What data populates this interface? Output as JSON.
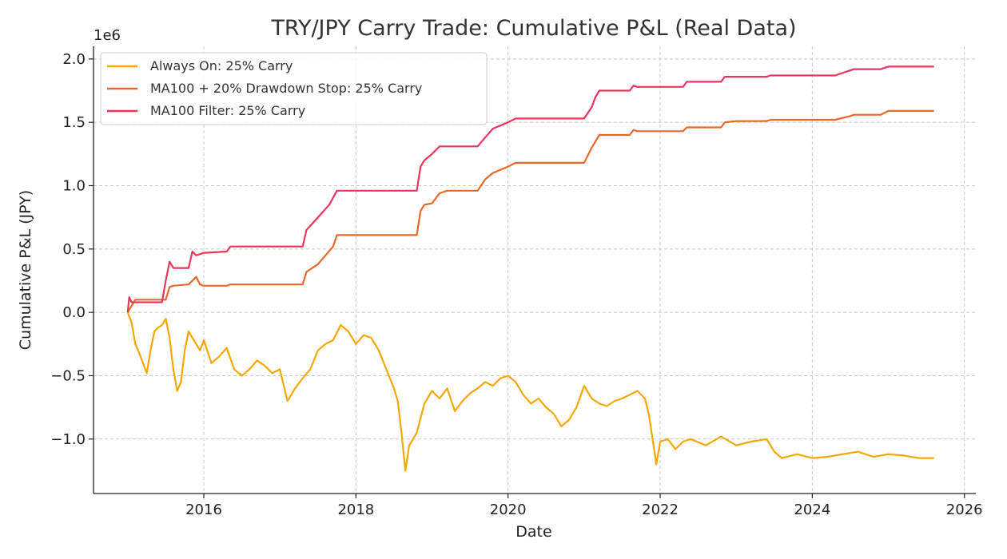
{
  "chart_data": {
    "type": "line",
    "title": "TRY/JPY Carry Trade: Cumulative P&L (Real Data)",
    "xlabel": "Date",
    "ylabel": "Cumulative P&L (JPY)",
    "y_offset_label": "1e6",
    "xlim": [
      2014.55,
      2026.15
    ],
    "ylim": [
      -1.43,
      2.1
    ],
    "x_ticks": [
      2016,
      2018,
      2020,
      2022,
      2024,
      2026
    ],
    "x_tick_labels": [
      "2016",
      "2018",
      "2020",
      "2022",
      "2024",
      "2026"
    ],
    "y_ticks": [
      -1.0,
      -0.5,
      0.0,
      0.5,
      1.0,
      1.5,
      2.0
    ],
    "y_tick_labels": [
      "−1.0",
      "−0.5",
      "0.0",
      "0.5",
      "1.0",
      "1.5",
      "2.0"
    ],
    "grid": true,
    "legend_position": "top-left",
    "series": [
      {
        "name": "Always On: 25% Carry",
        "color": "#f5a800",
        "x": [
          2015.0,
          2015.05,
          2015.1,
          2015.15,
          2015.2,
          2015.25,
          2015.3,
          2015.35,
          2015.4,
          2015.45,
          2015.5,
          2015.55,
          2015.6,
          2015.65,
          2015.7,
          2015.75,
          2015.8,
          2015.85,
          2015.9,
          2015.95,
          2016.0,
          2016.1,
          2016.2,
          2016.3,
          2016.4,
          2016.5,
          2016.6,
          2016.7,
          2016.8,
          2016.9,
          2017.0,
          2017.1,
          2017.2,
          2017.3,
          2017.4,
          2017.5,
          2017.6,
          2017.7,
          2017.8,
          2017.9,
          2018.0,
          2018.1,
          2018.2,
          2018.3,
          2018.4,
          2018.5,
          2018.55,
          2018.6,
          2018.65,
          2018.7,
          2018.8,
          2018.9,
          2019.0,
          2019.1,
          2019.2,
          2019.3,
          2019.4,
          2019.5,
          2019.6,
          2019.7,
          2019.8,
          2019.9,
          2020.0,
          2020.1,
          2020.2,
          2020.3,
          2020.4,
          2020.5,
          2020.6,
          2020.7,
          2020.8,
          2020.9,
          2021.0,
          2021.1,
          2021.2,
          2021.3,
          2021.4,
          2021.5,
          2021.6,
          2021.7,
          2021.8,
          2021.85,
          2021.9,
          2021.95,
          2022.0,
          2022.1,
          2022.2,
          2022.3,
          2022.4,
          2022.6,
          2022.8,
          2023.0,
          2023.2,
          2023.4,
          2023.5,
          2023.6,
          2023.8,
          2024.0,
          2024.2,
          2024.4,
          2024.6,
          2024.8,
          2025.0,
          2025.2,
          2025.4,
          2025.6
        ],
        "values": [
          0.0,
          -0.08,
          -0.25,
          -0.32,
          -0.4,
          -0.48,
          -0.3,
          -0.15,
          -0.12,
          -0.1,
          -0.05,
          -0.2,
          -0.45,
          -0.62,
          -0.55,
          -0.3,
          -0.15,
          -0.2,
          -0.25,
          -0.3,
          -0.22,
          -0.4,
          -0.35,
          -0.28,
          -0.45,
          -0.5,
          -0.45,
          -0.38,
          -0.42,
          -0.48,
          -0.45,
          -0.7,
          -0.6,
          -0.52,
          -0.45,
          -0.3,
          -0.25,
          -0.22,
          -0.1,
          -0.15,
          -0.25,
          -0.18,
          -0.2,
          -0.3,
          -0.45,
          -0.6,
          -0.7,
          -0.95,
          -1.25,
          -1.05,
          -0.95,
          -0.72,
          -0.62,
          -0.68,
          -0.6,
          -0.78,
          -0.7,
          -0.64,
          -0.6,
          -0.55,
          -0.58,
          -0.52,
          -0.5,
          -0.55,
          -0.65,
          -0.72,
          -0.68,
          -0.75,
          -0.8,
          -0.9,
          -0.85,
          -0.75,
          -0.58,
          -0.68,
          -0.72,
          -0.74,
          -0.7,
          -0.68,
          -0.65,
          -0.62,
          -0.68,
          -0.8,
          -1.0,
          -1.2,
          -1.02,
          -1.0,
          -1.08,
          -1.02,
          -1.0,
          -1.05,
          -0.98,
          -1.05,
          -1.02,
          -1.0,
          -1.1,
          -1.15,
          -1.12,
          -1.15,
          -1.14,
          -1.12,
          -1.1,
          -1.14,
          -1.12,
          -1.13,
          -1.15,
          -1.15
        ]
      },
      {
        "name": "MA100 + 20% Drawdown Stop: 25% Carry",
        "color": "#e8692a",
        "x": [
          2015.0,
          2015.05,
          2015.1,
          2015.5,
          2015.55,
          2015.6,
          2015.8,
          2015.9,
          2015.95,
          2016.0,
          2016.1,
          2016.2,
          2016.3,
          2016.35,
          2017.3,
          2017.35,
          2017.5,
          2017.7,
          2017.75,
          2018.0,
          2018.8,
          2018.85,
          2018.9,
          2019.0,
          2019.1,
          2019.2,
          2019.6,
          2019.7,
          2019.8,
          2020.0,
          2020.1,
          2021.0,
          2021.1,
          2021.2,
          2021.6,
          2021.65,
          2021.7,
          2022.0,
          2022.3,
          2022.35,
          2022.8,
          2022.85,
          2023.0,
          2023.4,
          2023.45,
          2024.3,
          2024.5,
          2024.55,
          2024.9,
          2025.0,
          2025.6
        ],
        "values": [
          0.0,
          0.05,
          0.1,
          0.1,
          0.2,
          0.21,
          0.22,
          0.28,
          0.22,
          0.21,
          0.21,
          0.21,
          0.21,
          0.22,
          0.22,
          0.32,
          0.38,
          0.52,
          0.61,
          0.61,
          0.61,
          0.8,
          0.85,
          0.86,
          0.94,
          0.96,
          0.96,
          1.05,
          1.1,
          1.15,
          1.18,
          1.18,
          1.3,
          1.4,
          1.4,
          1.44,
          1.43,
          1.43,
          1.43,
          1.46,
          1.46,
          1.5,
          1.51,
          1.51,
          1.52,
          1.52,
          1.55,
          1.56,
          1.56,
          1.59,
          1.59
        ]
      },
      {
        "name": "MA100 Filter: 25% Carry",
        "color": "#e8365d",
        "x": [
          2015.0,
          2015.02,
          2015.05,
          2015.1,
          2015.45,
          2015.5,
          2015.55,
          2015.6,
          2015.8,
          2015.85,
          2015.9,
          2016.0,
          2016.3,
          2016.35,
          2017.3,
          2017.35,
          2017.5,
          2017.65,
          2017.75,
          2018.0,
          2018.8,
          2018.85,
          2018.9,
          2019.0,
          2019.1,
          2019.6,
          2019.7,
          2019.8,
          2020.0,
          2020.1,
          2021.0,
          2021.1,
          2021.15,
          2021.2,
          2021.6,
          2021.65,
          2021.7,
          2022.3,
          2022.35,
          2022.8,
          2022.85,
          2023.0,
          2023.4,
          2023.45,
          2024.3,
          2024.5,
          2024.55,
          2024.9,
          2025.0,
          2025.6
        ],
        "values": [
          0.0,
          0.12,
          0.08,
          0.08,
          0.08,
          0.25,
          0.4,
          0.35,
          0.35,
          0.48,
          0.45,
          0.47,
          0.48,
          0.52,
          0.52,
          0.65,
          0.75,
          0.85,
          0.96,
          0.96,
          0.96,
          1.15,
          1.2,
          1.25,
          1.31,
          1.31,
          1.38,
          1.45,
          1.5,
          1.53,
          1.53,
          1.62,
          1.7,
          1.75,
          1.75,
          1.79,
          1.78,
          1.78,
          1.82,
          1.82,
          1.86,
          1.86,
          1.86,
          1.87,
          1.87,
          1.91,
          1.92,
          1.92,
          1.94,
          1.94
        ]
      }
    ]
  }
}
